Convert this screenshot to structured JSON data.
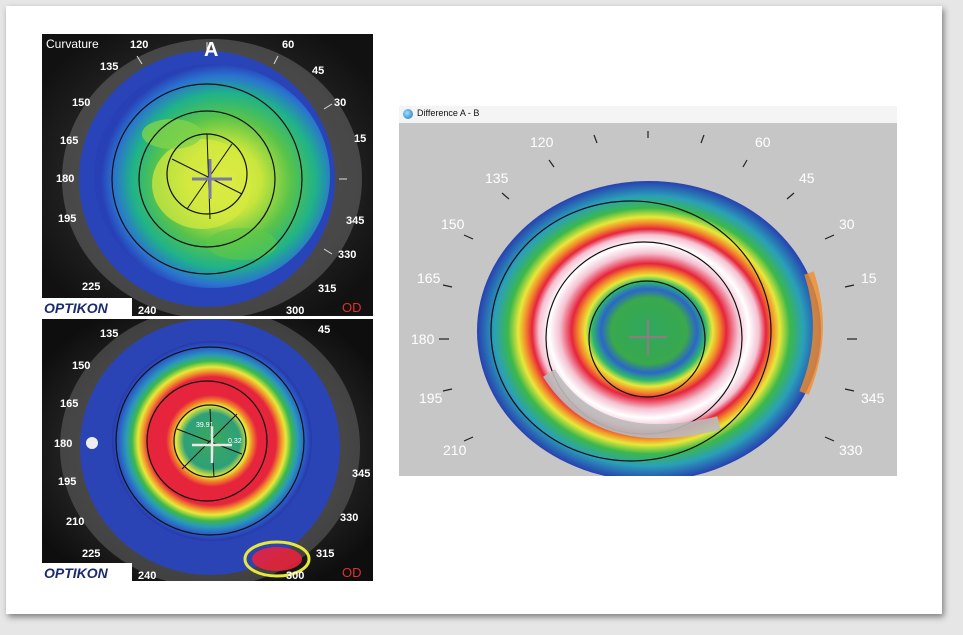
{
  "figure": {
    "panel_a": {
      "map_type": "Curvature",
      "label": "A",
      "eye": "OD",
      "brand": "OPTIKON",
      "angle_labels": [
        "120",
        "60",
        "135",
        "45",
        "150",
        "30",
        "165",
        "15",
        "180",
        "345",
        "195",
        "330",
        "225",
        "315",
        "240",
        "300"
      ],
      "readout": ""
    },
    "panel_b": {
      "eye": "OD",
      "brand": "OPTIKON",
      "angle_labels": [
        "135",
        "45",
        "150",
        "165",
        "180",
        "345",
        "195",
        "330",
        "210",
        "225",
        "315",
        "240",
        "300"
      ],
      "readout_1": "39.91",
      "readout_2": "0.32"
    },
    "difference_window": {
      "title": "Difference A - B",
      "angle_labels": [
        "120",
        "60",
        "135",
        "45",
        "150",
        "30",
        "165",
        "15",
        "180",
        "345",
        "195",
        "330",
        "210"
      ]
    }
  },
  "colors": {
    "blue": "#2b4fc4",
    "green": "#3cb84a",
    "yellow": "#e8e83a",
    "red": "#e6243c",
    "pink": "#f4c2d2",
    "gray_bg": "#c6c6c6"
  }
}
